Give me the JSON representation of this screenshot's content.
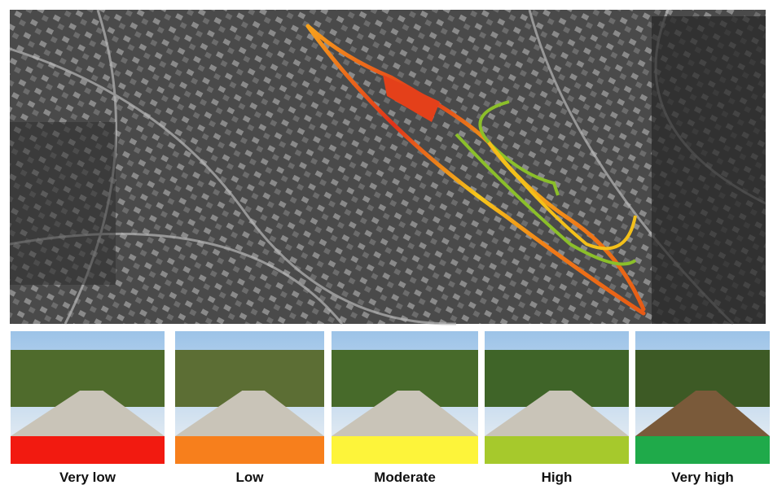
{
  "legend": {
    "items": [
      {
        "label": "Very low",
        "color": "#f21a10"
      },
      {
        "label": "Low",
        "color": "#f77f1c"
      },
      {
        "label": "Moderate",
        "color": "#fdf43a"
      },
      {
        "label": "High",
        "color": "#a6c92c"
      },
      {
        "label": "Very high",
        "color": "#1faa4a"
      }
    ]
  }
}
